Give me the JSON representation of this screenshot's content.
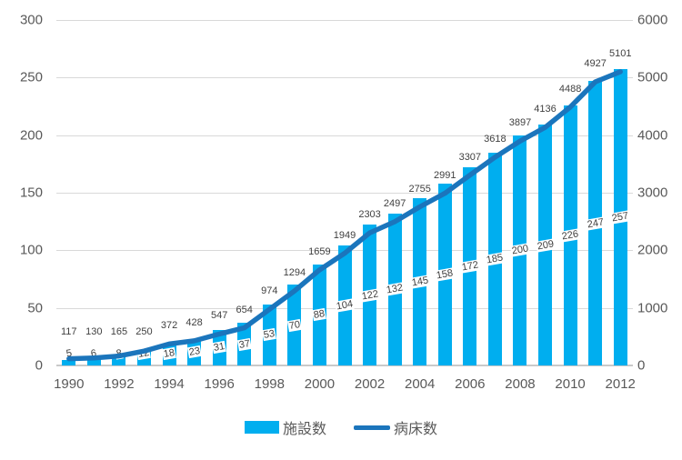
{
  "chart_data": {
    "type": "bar",
    "subtype": "combo-bar-line",
    "title": "",
    "categories": [
      1990,
      1991,
      1992,
      1993,
      1994,
      1995,
      1996,
      1997,
      1998,
      1999,
      2000,
      2001,
      2002,
      2003,
      2004,
      2005,
      2006,
      2007,
      2008,
      2009,
      2010,
      2011,
      2012
    ],
    "series": [
      {
        "name": "施設数",
        "type": "bar",
        "axis": "left",
        "color": "#00AEEF",
        "values": [
          5,
          6,
          8,
          12,
          18,
          23,
          31,
          37,
          53,
          70,
          88,
          104,
          122,
          132,
          145,
          158,
          172,
          185,
          200,
          209,
          226,
          247,
          257
        ]
      },
      {
        "name": "病床数",
        "type": "line",
        "axis": "right",
        "color": "#1B75BC",
        "values": [
          117,
          130,
          165,
          250,
          372,
          428,
          547,
          654,
          974,
          1294,
          1659,
          1949,
          2303,
          2497,
          2755,
          2991,
          3307,
          3618,
          3897,
          4136,
          4488,
          4927,
          5101
        ]
      }
    ],
    "left_axis": {
      "min": 0,
      "max": 300,
      "step": 50,
      "ticks": [
        "0",
        "50",
        "100",
        "150",
        "200",
        "250",
        "300"
      ]
    },
    "right_axis": {
      "min": 0,
      "max": 6000,
      "step": 1000,
      "ticks": [
        "0",
        "1000",
        "2000",
        "3000",
        "4000",
        "5000",
        "6000"
      ]
    },
    "x_tick_labels": [
      "1990",
      "1992",
      "1994",
      "1996",
      "1998",
      "2000",
      "2002",
      "2004",
      "2006",
      "2008",
      "2010",
      "2012"
    ],
    "legend_position": "bottom",
    "grid": true,
    "colors": {
      "bar": "#00AEEF",
      "line": "#1B75BC",
      "gridline": "#D9D9D9",
      "axis_text": "#595959",
      "data_label_text": "#404040",
      "background": "#FFFFFF"
    }
  }
}
